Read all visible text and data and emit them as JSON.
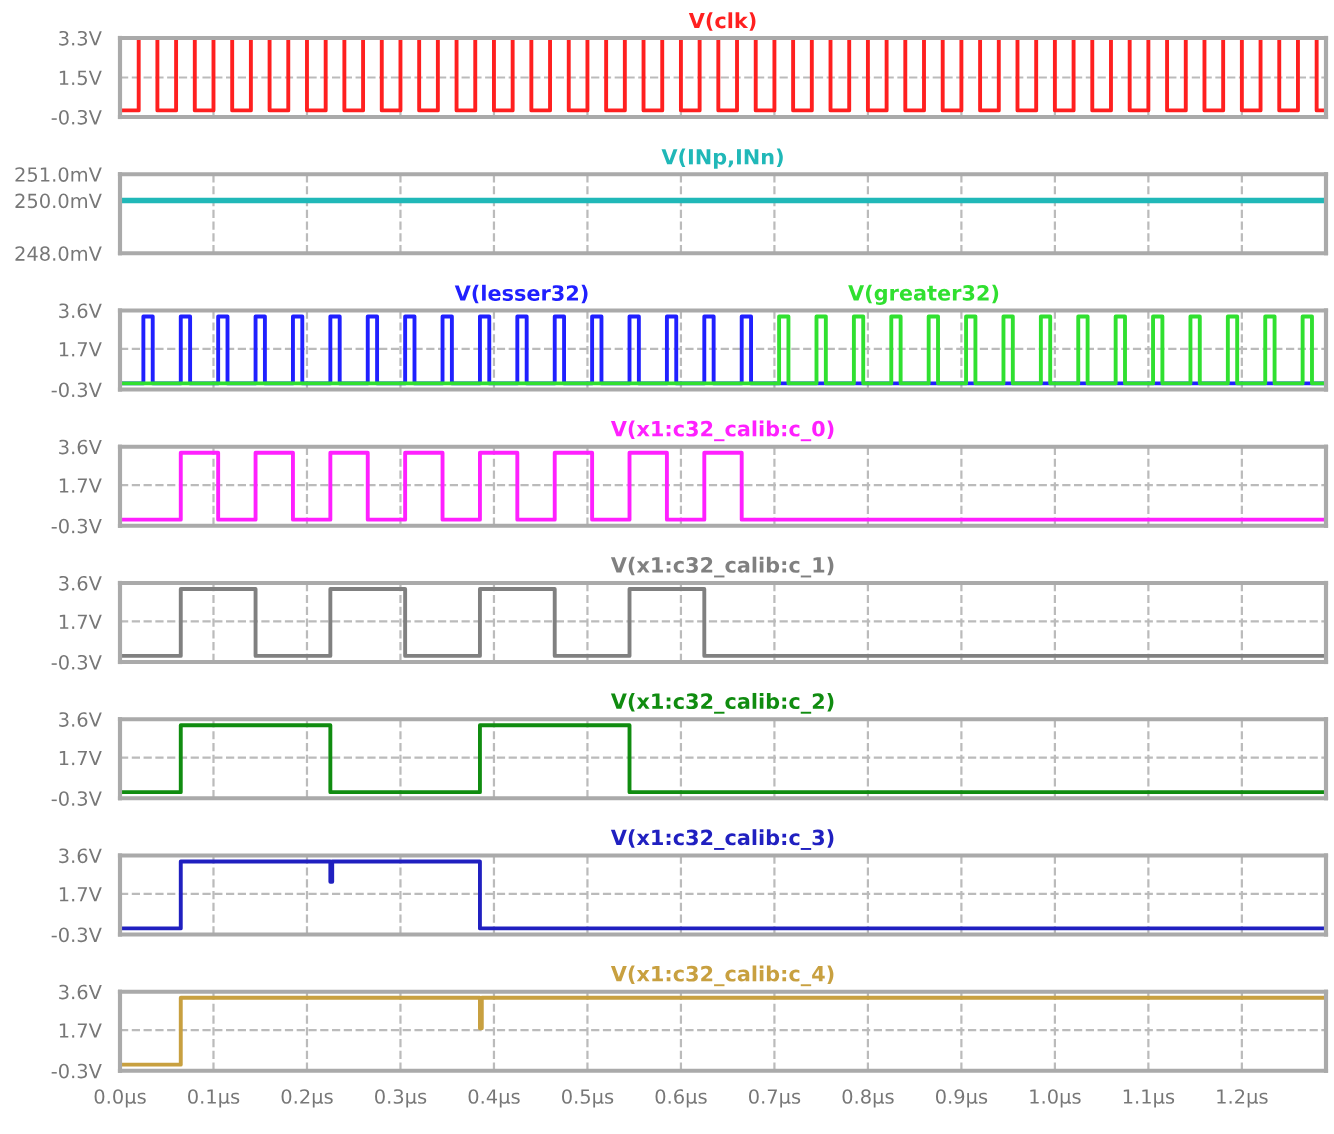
{
  "chart_data": [
    {
      "type": "step",
      "xlim": [
        0,
        1.29
      ],
      "ylim": [
        -0.3,
        3.3
      ],
      "yticks": [
        {
          "value": -0.3,
          "label": "-0.3V"
        },
        {
          "value": 1.5,
          "label": "1.5V"
        },
        {
          "value": 3.3,
          "label": "3.3V"
        }
      ],
      "xticks": [
        {
          "value": 0.0,
          "label": null
        },
        {
          "value": 0.1,
          "label": null
        },
        {
          "value": 0.2,
          "label": null
        },
        {
          "value": 0.3,
          "label": null
        },
        {
          "value": 0.4,
          "label": null
        },
        {
          "value": 0.5,
          "label": null
        },
        {
          "value": 0.6,
          "label": null
        },
        {
          "value": 0.7,
          "label": null
        },
        {
          "value": 0.8,
          "label": null
        },
        {
          "value": 0.9,
          "label": null
        },
        {
          "value": 1.0,
          "label": null
        },
        {
          "value": 1.1,
          "label": null
        },
        {
          "value": 1.2,
          "label": null
        }
      ],
      "tick_labels": "y",
      "grid": true,
      "series": [
        {
          "name": "V(clk)",
          "color": "#ff2020",
          "x": [
            0,
            0.02,
            0.04,
            0.06,
            0.08,
            0.1,
            0.12,
            0.14,
            0.16,
            0.18,
            0.2,
            0.22,
            0.24,
            0.26,
            0.28,
            0.3,
            0.32,
            0.34,
            0.36,
            0.38,
            0.4,
            0.42,
            0.44,
            0.46,
            0.48,
            0.5,
            0.52,
            0.54,
            0.56,
            0.58,
            0.6,
            0.62,
            0.64,
            0.66,
            0.68,
            0.7,
            0.72,
            0.74,
            0.76,
            0.78,
            0.8,
            0.82,
            0.84,
            0.86,
            0.88,
            0.9,
            0.92,
            0.94,
            0.96,
            0.98,
            1.0,
            1.02,
            1.04,
            1.06,
            1.08,
            1.1,
            1.12,
            1.14,
            1.16,
            1.18,
            1.2,
            1.22,
            1.24,
            1.26,
            1.28,
            1.29
          ],
          "values": [
            0,
            3.3,
            0,
            3.3,
            0,
            3.3,
            0,
            3.3,
            0,
            3.3,
            0,
            3.3,
            0,
            3.3,
            0,
            3.3,
            0,
            3.3,
            0,
            3.3,
            0,
            3.3,
            0,
            3.3,
            0,
            3.3,
            0,
            3.3,
            0,
            3.3,
            0,
            3.3,
            0,
            3.3,
            0,
            3.3,
            0,
            3.3,
            0,
            3.3,
            0,
            3.3,
            0,
            3.3,
            0,
            3.3,
            0,
            3.3,
            0,
            3.3,
            0,
            3.3,
            0,
            3.3,
            0,
            3.3,
            0,
            3.3,
            0,
            3.3,
            0,
            3.3,
            0,
            3.3,
            0,
            0
          ]
        }
      ]
    },
    {
      "type": "line",
      "xlim": [
        0,
        1.29
      ],
      "ylim": [
        248,
        251
      ],
      "yticks": [
        {
          "value": 248,
          "label": "248.0mV"
        },
        {
          "value": 250,
          "label": "250.0mV"
        },
        {
          "value": 251,
          "label": "251.0mV"
        }
      ],
      "xticks": [
        {
          "value": 0.0,
          "label": null
        },
        {
          "value": 0.1,
          "label": null
        },
        {
          "value": 0.2,
          "label": null
        },
        {
          "value": 0.3,
          "label": null
        },
        {
          "value": 0.4,
          "label": null
        },
        {
          "value": 0.5,
          "label": null
        },
        {
          "value": 0.6,
          "label": null
        },
        {
          "value": 0.7,
          "label": null
        },
        {
          "value": 0.8,
          "label": null
        },
        {
          "value": 0.9,
          "label": null
        },
        {
          "value": 1.0,
          "label": null
        },
        {
          "value": 1.1,
          "label": null
        },
        {
          "value": 1.2,
          "label": null
        }
      ],
      "tick_labels": "y",
      "grid": true,
      "series": [
        {
          "name": "V(INp,INn)",
          "color": "#20b8b8",
          "x": [
            0,
            1.29
          ],
          "values": [
            250,
            250
          ]
        }
      ]
    },
    {
      "type": "step",
      "xlim": [
        0,
        1.29
      ],
      "ylim": [
        -0.3,
        3.6
      ],
      "yticks": [
        {
          "value": -0.3,
          "label": "-0.3V"
        },
        {
          "value": 1.7,
          "label": "1.7V"
        },
        {
          "value": 3.6,
          "label": "3.6V"
        }
      ],
      "xticks": [
        {
          "value": 0.0,
          "label": null
        },
        {
          "value": 0.1,
          "label": null
        },
        {
          "value": 0.2,
          "label": null
        },
        {
          "value": 0.3,
          "label": null
        },
        {
          "value": 0.4,
          "label": null
        },
        {
          "value": 0.5,
          "label": null
        },
        {
          "value": 0.6,
          "label": null
        },
        {
          "value": 0.7,
          "label": null
        },
        {
          "value": 0.8,
          "label": null
        },
        {
          "value": 0.9,
          "label": null
        },
        {
          "value": 1.0,
          "label": null
        },
        {
          "value": 1.1,
          "label": null
        },
        {
          "value": 1.2,
          "label": null
        }
      ],
      "tick_labels": "y",
      "grid": true,
      "series": [
        {
          "name": "V(lesser32)",
          "color": "#2020ff",
          "x": [
            0,
            0.025,
            0.035,
            0.065,
            0.075,
            0.105,
            0.115,
            0.145,
            0.155,
            0.185,
            0.195,
            0.225,
            0.235,
            0.265,
            0.275,
            0.305,
            0.315,
            0.345,
            0.355,
            0.385,
            0.395,
            0.425,
            0.435,
            0.465,
            0.475,
            0.505,
            0.515,
            0.545,
            0.555,
            0.585,
            0.595,
            0.625,
            0.635,
            0.665,
            0.675,
            1.29
          ],
          "values": [
            0,
            3.3,
            0,
            3.3,
            0,
            3.3,
            0,
            3.3,
            0,
            3.3,
            0,
            3.3,
            0,
            3.3,
            0,
            3.3,
            0,
            3.3,
            0,
            3.3,
            0,
            3.3,
            0,
            3.3,
            0,
            3.3,
            0,
            3.3,
            0,
            3.3,
            0,
            3.3,
            0,
            3.3,
            0,
            0
          ]
        },
        {
          "name": "V(greater32)",
          "color": "#30e030",
          "x": [
            0,
            0.705,
            0.715,
            0.745,
            0.755,
            0.785,
            0.795,
            0.825,
            0.835,
            0.865,
            0.875,
            0.905,
            0.915,
            0.945,
            0.955,
            0.985,
            0.995,
            1.025,
            1.035,
            1.065,
            1.075,
            1.105,
            1.115,
            1.145,
            1.155,
            1.185,
            1.195,
            1.225,
            1.235,
            1.265,
            1.275,
            1.29
          ],
          "values": [
            0,
            3.3,
            0,
            3.3,
            0,
            3.3,
            0,
            3.3,
            0,
            3.3,
            0,
            3.3,
            0,
            3.3,
            0,
            3.3,
            0,
            3.3,
            0,
            3.3,
            0,
            3.3,
            0,
            3.3,
            0,
            3.3,
            0,
            3.3,
            0,
            3.3,
            0,
            0
          ]
        }
      ]
    },
    {
      "type": "step",
      "xlim": [
        0,
        1.29
      ],
      "ylim": [
        -0.3,
        3.6
      ],
      "yticks": [
        {
          "value": -0.3,
          "label": "-0.3V"
        },
        {
          "value": 1.7,
          "label": "1.7V"
        },
        {
          "value": 3.6,
          "label": "3.6V"
        }
      ],
      "xticks": [
        {
          "value": 0.0,
          "label": null
        },
        {
          "value": 0.1,
          "label": null
        },
        {
          "value": 0.2,
          "label": null
        },
        {
          "value": 0.3,
          "label": null
        },
        {
          "value": 0.4,
          "label": null
        },
        {
          "value": 0.5,
          "label": null
        },
        {
          "value": 0.6,
          "label": null
        },
        {
          "value": 0.7,
          "label": null
        },
        {
          "value": 0.8,
          "label": null
        },
        {
          "value": 0.9,
          "label": null
        },
        {
          "value": 1.0,
          "label": null
        },
        {
          "value": 1.1,
          "label": null
        },
        {
          "value": 1.2,
          "label": null
        }
      ],
      "tick_labels": "y",
      "grid": true,
      "series": [
        {
          "name": "V(x1:c32_calib:c_0)",
          "color": "#ff20ff",
          "x": [
            0,
            0.065,
            0.105,
            0.145,
            0.185,
            0.225,
            0.265,
            0.305,
            0.345,
            0.385,
            0.425,
            0.465,
            0.505,
            0.545,
            0.585,
            0.625,
            0.665,
            1.29
          ],
          "values": [
            0,
            3.3,
            0,
            3.3,
            0,
            3.3,
            0,
            3.3,
            0,
            3.3,
            0,
            3.3,
            0,
            3.3,
            0,
            3.3,
            0,
            0
          ]
        }
      ]
    },
    {
      "type": "step",
      "xlim": [
        0,
        1.29
      ],
      "ylim": [
        -0.3,
        3.6
      ],
      "yticks": [
        {
          "value": -0.3,
          "label": "-0.3V"
        },
        {
          "value": 1.7,
          "label": "1.7V"
        },
        {
          "value": 3.6,
          "label": "3.6V"
        }
      ],
      "xticks": [
        {
          "value": 0.0,
          "label": null
        },
        {
          "value": 0.1,
          "label": null
        },
        {
          "value": 0.2,
          "label": null
        },
        {
          "value": 0.3,
          "label": null
        },
        {
          "value": 0.4,
          "label": null
        },
        {
          "value": 0.5,
          "label": null
        },
        {
          "value": 0.6,
          "label": null
        },
        {
          "value": 0.7,
          "label": null
        },
        {
          "value": 0.8,
          "label": null
        },
        {
          "value": 0.9,
          "label": null
        },
        {
          "value": 1.0,
          "label": null
        },
        {
          "value": 1.1,
          "label": null
        },
        {
          "value": 1.2,
          "label": null
        }
      ],
      "tick_labels": "y",
      "grid": true,
      "series": [
        {
          "name": "V(x1:c32_calib:c_1)",
          "color": "#808080",
          "x": [
            0,
            0.065,
            0.145,
            0.225,
            0.305,
            0.385,
            0.465,
            0.545,
            0.625,
            1.29
          ],
          "values": [
            0,
            3.3,
            0,
            3.3,
            0,
            3.3,
            0,
            3.3,
            0,
            0
          ]
        }
      ]
    },
    {
      "type": "step",
      "xlim": [
        0,
        1.29
      ],
      "ylim": [
        -0.3,
        3.6
      ],
      "yticks": [
        {
          "value": -0.3,
          "label": "-0.3V"
        },
        {
          "value": 1.7,
          "label": "1.7V"
        },
        {
          "value": 3.6,
          "label": "3.6V"
        }
      ],
      "xticks": [
        {
          "value": 0.0,
          "label": null
        },
        {
          "value": 0.1,
          "label": null
        },
        {
          "value": 0.2,
          "label": null
        },
        {
          "value": 0.3,
          "label": null
        },
        {
          "value": 0.4,
          "label": null
        },
        {
          "value": 0.5,
          "label": null
        },
        {
          "value": 0.6,
          "label": null
        },
        {
          "value": 0.7,
          "label": null
        },
        {
          "value": 0.8,
          "label": null
        },
        {
          "value": 0.9,
          "label": null
        },
        {
          "value": 1.0,
          "label": null
        },
        {
          "value": 1.1,
          "label": null
        },
        {
          "value": 1.2,
          "label": null
        }
      ],
      "tick_labels": "y",
      "grid": true,
      "series": [
        {
          "name": "V(x1:c32_calib:c_2)",
          "color": "#108c10",
          "x": [
            0,
            0.065,
            0.225,
            0.385,
            0.545,
            1.29
          ],
          "values": [
            0,
            3.3,
            0,
            3.3,
            0,
            0
          ]
        }
      ]
    },
    {
      "type": "step",
      "xlim": [
        0,
        1.29
      ],
      "ylim": [
        -0.3,
        3.6
      ],
      "yticks": [
        {
          "value": -0.3,
          "label": "-0.3V"
        },
        {
          "value": 1.7,
          "label": "1.7V"
        },
        {
          "value": 3.6,
          "label": "3.6V"
        }
      ],
      "xticks": [
        {
          "value": 0.0,
          "label": null
        },
        {
          "value": 0.1,
          "label": null
        },
        {
          "value": 0.2,
          "label": null
        },
        {
          "value": 0.3,
          "label": null
        },
        {
          "value": 0.4,
          "label": null
        },
        {
          "value": 0.5,
          "label": null
        },
        {
          "value": 0.6,
          "label": null
        },
        {
          "value": 0.7,
          "label": null
        },
        {
          "value": 0.8,
          "label": null
        },
        {
          "value": 0.9,
          "label": null
        },
        {
          "value": 1.0,
          "label": null
        },
        {
          "value": 1.1,
          "label": null
        },
        {
          "value": 1.2,
          "label": null
        }
      ],
      "tick_labels": "y",
      "grid": true,
      "series": [
        {
          "name": "V(x1:c32_calib:c_3)",
          "color": "#2020c0",
          "x": [
            0,
            0.065,
            0.225,
            0.227,
            0.385,
            1.29
          ],
          "values": [
            0,
            3.3,
            2.3,
            3.3,
            0,
            0
          ]
        }
      ]
    },
    {
      "type": "step",
      "xlim": [
        0,
        1.29
      ],
      "ylim": [
        -0.3,
        3.6
      ],
      "yticks": [
        {
          "value": -0.3,
          "label": "-0.3V"
        },
        {
          "value": 1.7,
          "label": "1.7V"
        },
        {
          "value": 3.6,
          "label": "3.6V"
        }
      ],
      "xticks": [
        {
          "value": 0.0,
          "label": "0.0µs"
        },
        {
          "value": 0.1,
          "label": "0.1µs"
        },
        {
          "value": 0.2,
          "label": "0.2µs"
        },
        {
          "value": 0.3,
          "label": "0.3µs"
        },
        {
          "value": 0.4,
          "label": "0.4µs"
        },
        {
          "value": 0.5,
          "label": "0.5µs"
        },
        {
          "value": 0.6,
          "label": "0.6µs"
        },
        {
          "value": 0.7,
          "label": "0.7µs"
        },
        {
          "value": 0.8,
          "label": "0.8µs"
        },
        {
          "value": 0.9,
          "label": "0.9µs"
        },
        {
          "value": 1.0,
          "label": "1.0µs"
        },
        {
          "value": 1.1,
          "label": "1.1µs"
        },
        {
          "value": 1.2,
          "label": "1.2µs"
        }
      ],
      "grid": true,
      "series": [
        {
          "name": "V(x1:c32_calib:c_4)",
          "color": "#c8a040",
          "x": [
            0,
            0.065,
            0.385,
            0.387,
            1.29
          ],
          "values": [
            0,
            3.3,
            1.8,
            3.3,
            3.3
          ]
        }
      ]
    }
  ]
}
